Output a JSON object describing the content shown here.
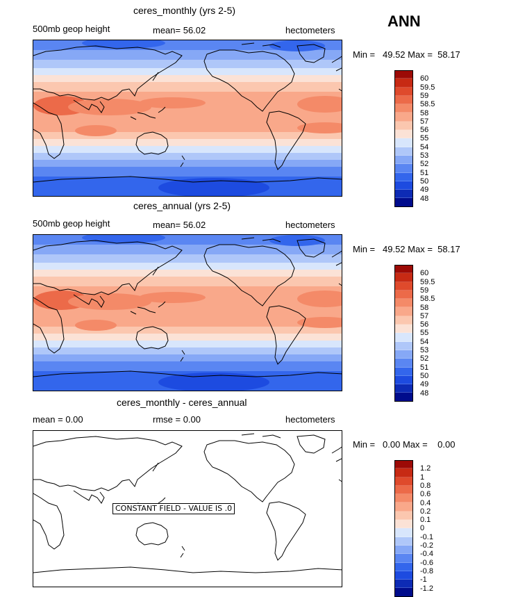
{
  "season": "ANN",
  "colors": {
    "contour_bands": [
      "#000c8c",
      "#0d2bb5",
      "#1d4be0",
      "#3366ec",
      "#5a86f2",
      "#86a8f6",
      "#afc7f9",
      "#d8e6fc",
      "#fbe2d6",
      "#fbc7af",
      "#f9a88a",
      "#f48a68",
      "#ec6a49",
      "#df4a2c",
      "#c72a14",
      "#9c0a06"
    ],
    "land_outline": "#000000"
  },
  "panels": [
    {
      "title": "ceres_monthly (yrs 2-5)",
      "left_label": "500mb geop height",
      "center_label": "mean=  56.02",
      "units": "hectometers",
      "min_label": "Min =",
      "min_value": "49.52",
      "max_label": "Max =",
      "max_value": "58.17",
      "colorbar_levels": [
        "60",
        "59.5",
        "59",
        "58.5",
        "58",
        "57",
        "56",
        "55",
        "54",
        "53",
        "52",
        "51",
        "50",
        "49",
        "48"
      ]
    },
    {
      "title": "ceres_annual (yrs 2-5)",
      "left_label": "500mb geop height",
      "center_label": "mean=  56.02",
      "units": "hectometers",
      "min_label": "Min =",
      "min_value": "49.52",
      "max_label": "Max =",
      "max_value": "58.17",
      "colorbar_levels": [
        "60",
        "59.5",
        "59",
        "58.5",
        "58",
        "57",
        "56",
        "55",
        "54",
        "53",
        "52",
        "51",
        "50",
        "49",
        "48"
      ]
    },
    {
      "title": "ceres_monthly - ceres_annual",
      "left_label": "mean =    0.00",
      "center_label": "rmse =    0.00",
      "units": "hectometers",
      "min_label": "Min =",
      "min_value": "0.00",
      "max_label": "Max =",
      "max_value": "0.00",
      "constant_field_label": "CONSTANT FIELD - VALUE IS .0",
      "colorbar_levels": [
        "1.2",
        "1",
        "0.8",
        "0.6",
        "0.4",
        "0.2",
        "0.1",
        "0",
        "-0.1",
        "-0.2",
        "-0.4",
        "-0.6",
        "-0.8",
        "-1",
        "-1.2"
      ]
    }
  ]
}
